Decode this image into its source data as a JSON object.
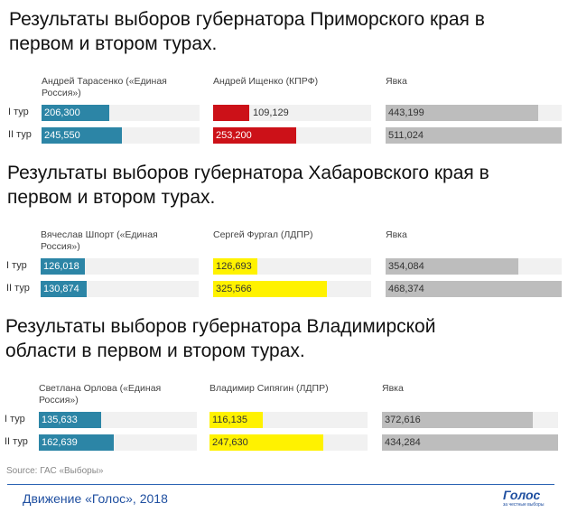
{
  "colors": {
    "er": "#2c85a6",
    "kprf": "#cc1118",
    "ldpr": "#fff200",
    "turnout": "#bdbdbd",
    "track": "#f1f1f1"
  },
  "chart_data": [
    {
      "type": "bar",
      "title": "Результаты выборов губернатора Приморского края в первом и втором турах.",
      "categories": [
        "I тур",
        "II тур"
      ],
      "series": [
        {
          "name": "Андрей Тарасенко («Единая Россия»)",
          "values": [
            206300,
            245550
          ],
          "labels": [
            "206,300",
            "245,550"
          ],
          "color_key": "er"
        },
        {
          "name": "Андрей Ищенко (КПРФ)",
          "values": [
            109129,
            253200
          ],
          "labels": [
            "109,129",
            "253,200"
          ],
          "color_key": "kprf"
        },
        {
          "name": "Явка",
          "values": [
            443199,
            511024
          ],
          "labels": [
            "443,199",
            "511,024"
          ],
          "color_key": "turnout"
        }
      ]
    },
    {
      "type": "bar",
      "title": "Результаты выборов губернатора Хабаровского края в первом и втором турах.",
      "categories": [
        "I тур",
        "II тур"
      ],
      "series": [
        {
          "name": "Вячеслав Шпорт («Единая Россия»)",
          "values": [
            126018,
            130874
          ],
          "labels": [
            "126,018",
            "130,874"
          ],
          "color_key": "er"
        },
        {
          "name": "Сергей Фургал (ЛДПР)",
          "values": [
            126693,
            325566
          ],
          "labels": [
            "126,693",
            "325,566"
          ],
          "color_key": "ldpr"
        },
        {
          "name": "Явка",
          "values": [
            354084,
            468374
          ],
          "labels": [
            "354,084",
            "468,374"
          ],
          "color_key": "turnout"
        }
      ]
    },
    {
      "type": "bar",
      "title": "Результаты выборов губернатора Владимирской области в первом и втором турах.",
      "categories": [
        "I тур",
        "II тур"
      ],
      "series": [
        {
          "name": "Светлана Орлова («Единая Россия»)",
          "values": [
            135633,
            162639
          ],
          "labels": [
            "135,633",
            "162,639"
          ],
          "color_key": "er"
        },
        {
          "name": "Владимир Сипягин (ЛДПР)",
          "values": [
            116135,
            247630
          ],
          "labels": [
            "116,135",
            "247,630"
          ],
          "color_key": "ldpr"
        },
        {
          "name": "Явка",
          "values": [
            372616,
            434284
          ],
          "labels": [
            "372,616",
            "434,284"
          ],
          "color_key": "turnout"
        }
      ]
    }
  ],
  "source": "Source: ГАС «Выборы»",
  "footer": "Движение «Голос», 2018",
  "logo": {
    "main": "Голос",
    "sub": "за честные выборы"
  }
}
